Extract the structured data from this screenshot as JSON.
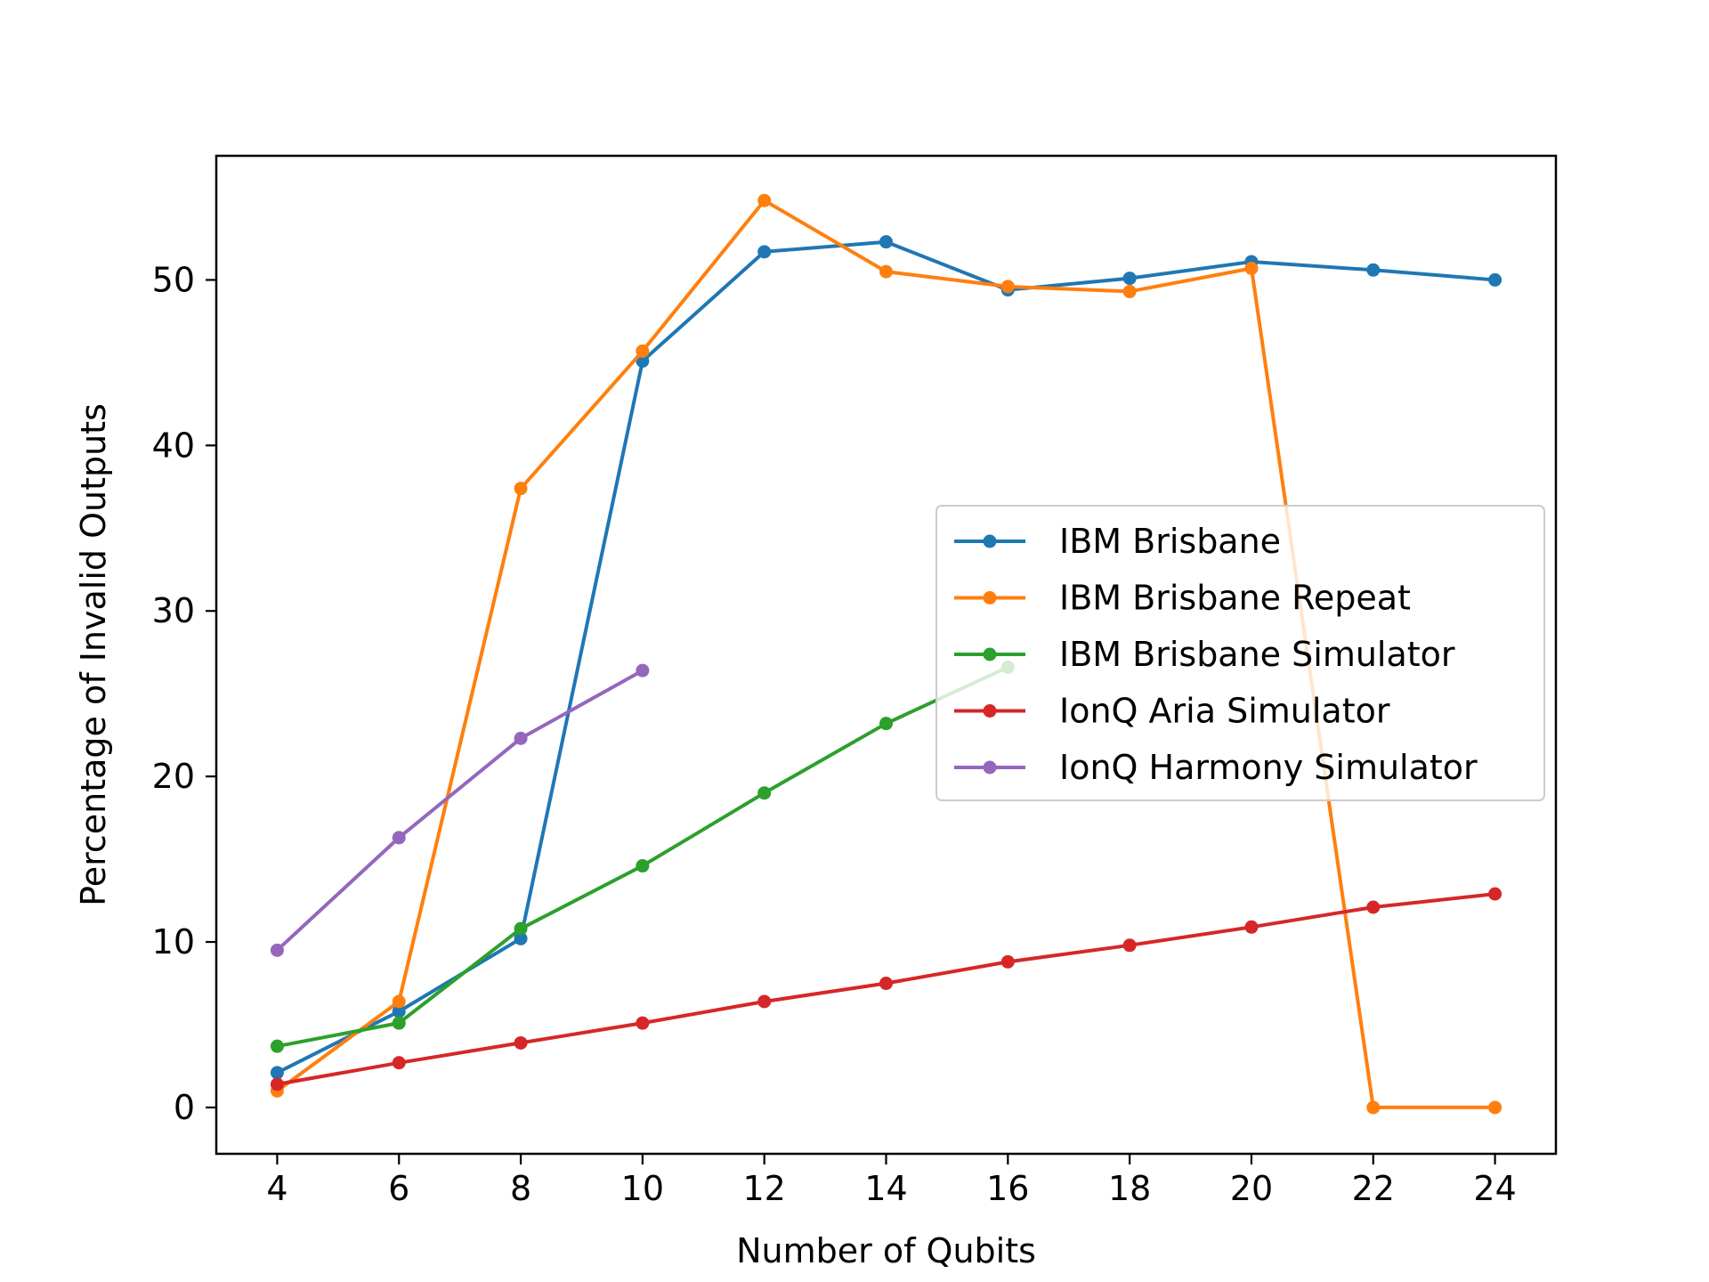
{
  "chart_data": {
    "type": "line",
    "title": "",
    "xlabel": "Number of Qubits",
    "ylabel": "Percentage of Invalid Outputs",
    "xlim": [
      3,
      25
    ],
    "ylim": [
      -2.8,
      57.5
    ],
    "xticks": [
      4,
      6,
      8,
      10,
      12,
      14,
      16,
      18,
      20,
      22,
      24
    ],
    "yticks": [
      0,
      10,
      20,
      30,
      40,
      50
    ],
    "grid": false,
    "legend_position": "center-right",
    "series": [
      {
        "name": "IBM Brisbane",
        "color": "#1f77b4",
        "x": [
          4,
          6,
          8,
          10,
          12,
          14,
          16,
          18,
          20,
          22,
          24
        ],
        "y": [
          2.1,
          5.8,
          10.2,
          45.1,
          51.7,
          52.3,
          49.4,
          50.1,
          51.1,
          50.6,
          50.0
        ]
      },
      {
        "name": "IBM Brisbane Repeat",
        "color": "#ff7f0e",
        "x": [
          4,
          6,
          8,
          10,
          12,
          14,
          16,
          18,
          20,
          22,
          24
        ],
        "y": [
          1.0,
          6.4,
          37.4,
          45.7,
          54.8,
          50.5,
          49.6,
          49.3,
          50.7,
          0.0,
          0.0
        ]
      },
      {
        "name": "IBM Brisbane Simulator",
        "color": "#2ca02c",
        "x": [
          4,
          6,
          8,
          10,
          12,
          14,
          16
        ],
        "y": [
          3.7,
          5.1,
          10.8,
          14.6,
          19.0,
          23.2,
          26.6
        ]
      },
      {
        "name": "IonQ Aria Simulator",
        "color": "#d62728",
        "x": [
          4,
          6,
          8,
          10,
          12,
          14,
          16,
          18,
          20,
          22,
          24
        ],
        "y": [
          1.4,
          2.7,
          3.9,
          5.1,
          6.4,
          7.5,
          8.8,
          9.8,
          10.9,
          12.1,
          12.9
        ]
      },
      {
        "name": "IonQ Harmony Simulator",
        "color": "#9467bd",
        "x": [
          4,
          6,
          8,
          10
        ],
        "y": [
          9.5,
          16.3,
          22.3,
          26.4
        ]
      }
    ]
  }
}
